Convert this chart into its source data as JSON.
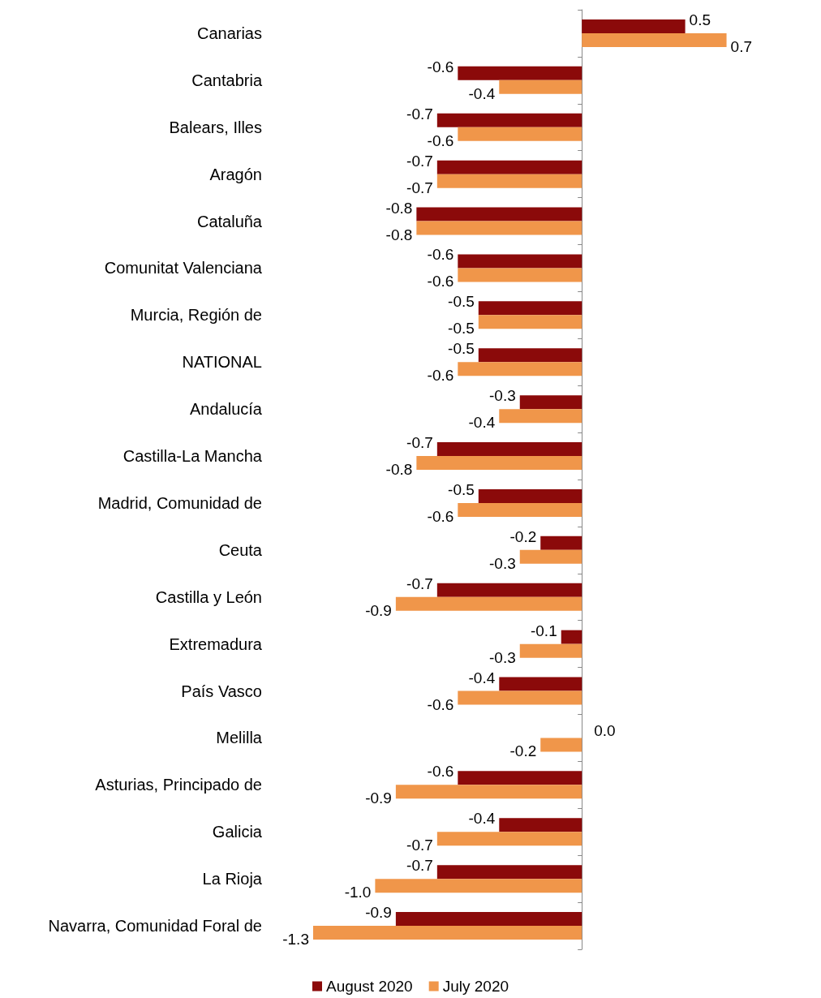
{
  "chart_data": {
    "type": "bar",
    "orientation": "horizontal",
    "grid": false,
    "legend": "bottom",
    "categories": [
      "Canarias",
      "Cantabria",
      "Balears, Illes",
      "Aragón",
      "Cataluña",
      "Comunitat Valenciana",
      "Murcia, Región de",
      "NATIONAL",
      "Andalucía",
      "Castilla-La Mancha",
      "Madrid, Comunidad de",
      "Ceuta",
      "Castilla y León",
      "Extremadura",
      "País Vasco",
      "Melilla",
      "Asturias, Principado de",
      "Galicia",
      "La Rioja",
      "Navarra, Comunidad Foral de"
    ],
    "series": [
      {
        "name": "August 2020",
        "color": "#8b0a0a",
        "values": [
          0.5,
          -0.6,
          -0.7,
          -0.7,
          -0.8,
          -0.6,
          -0.5,
          -0.5,
          -0.3,
          -0.7,
          -0.5,
          -0.2,
          -0.7,
          -0.1,
          -0.4,
          0.0,
          -0.6,
          -0.4,
          -0.7,
          -0.9
        ],
        "value_labels": [
          "0.5",
          "-0.6",
          "-0.7",
          "-0.7",
          "-0.8",
          "-0.6",
          "-0.5",
          "-0.5",
          "-0.3",
          "-0.7",
          "-0.5",
          "-0.2",
          "-0.7",
          "-0.1",
          "-0.4",
          "0.0",
          "-0.6",
          "-0.4",
          "-0.7",
          "-0.9"
        ]
      },
      {
        "name": "July 2020",
        "color": "#f0964a",
        "values": [
          0.7,
          -0.4,
          -0.6,
          -0.7,
          -0.8,
          -0.6,
          -0.5,
          -0.6,
          -0.4,
          -0.8,
          -0.6,
          -0.3,
          -0.9,
          -0.3,
          -0.6,
          -0.2,
          -0.9,
          -0.7,
          -1.0,
          -1.3
        ],
        "value_labels": [
          "0.7",
          "-0.4",
          "-0.6",
          "-0.7",
          "-0.8",
          "-0.6",
          "-0.5",
          "-0.6",
          "-0.4",
          "-0.8",
          "-0.6",
          "-0.3",
          "-0.9",
          "-0.3",
          "-0.6",
          "-0.2",
          "-0.9",
          "-0.7",
          "-1.0",
          "-1.3"
        ]
      }
    ]
  }
}
